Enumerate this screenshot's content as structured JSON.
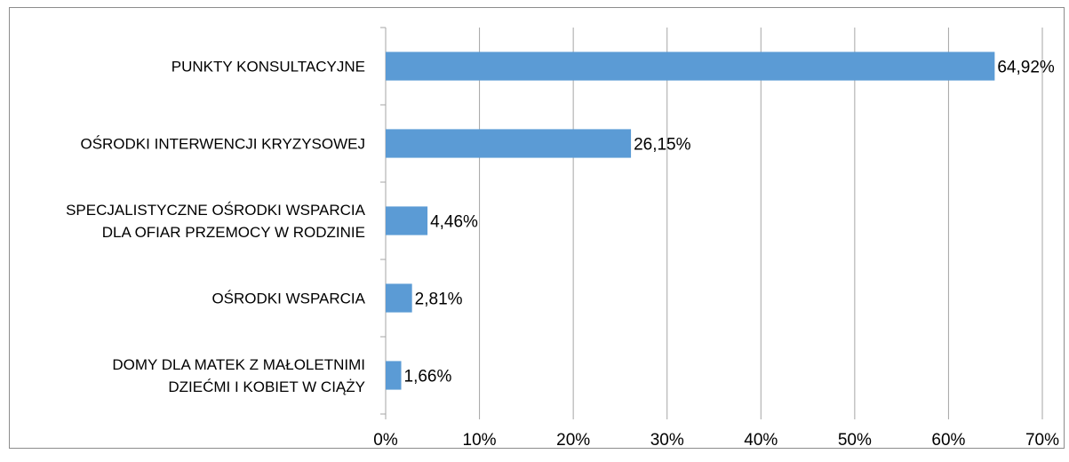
{
  "chart_data": {
    "type": "bar",
    "orientation": "horizontal",
    "categories": [
      [
        "PUNKTY KONSULTACYJNE"
      ],
      [
        "OŚRODKI INTERWENCJI KRYZYSOWEJ"
      ],
      [
        "SPECJALISTYCZNE OŚRODKI WSPARCIA",
        "DLA OFIAR PRZEMOCY W RODZINIE"
      ],
      [
        "OŚRODKI WSPARCIA"
      ],
      [
        "DOMY DLA MATEK Z MAŁOLETNIMI",
        "DZIEĆMI I KOBIET W CIĄŻY"
      ]
    ],
    "values": [
      64.92,
      26.15,
      4.46,
      2.81,
      1.66
    ],
    "data_labels": [
      "64,92%",
      "26,15%",
      "4,46%",
      "2,81%",
      "1,66%"
    ],
    "xlim": [
      0,
      70
    ],
    "x_ticks": [
      0,
      10,
      20,
      30,
      40,
      50,
      60,
      70
    ],
    "x_tick_labels": [
      "0%",
      "10%",
      "20%",
      "30%",
      "40%",
      "50%",
      "60%",
      "70%"
    ],
    "grid": "vertical",
    "legend": "none",
    "bar_color": "#5b9bd5",
    "grid_color": "#a6a6a6"
  }
}
